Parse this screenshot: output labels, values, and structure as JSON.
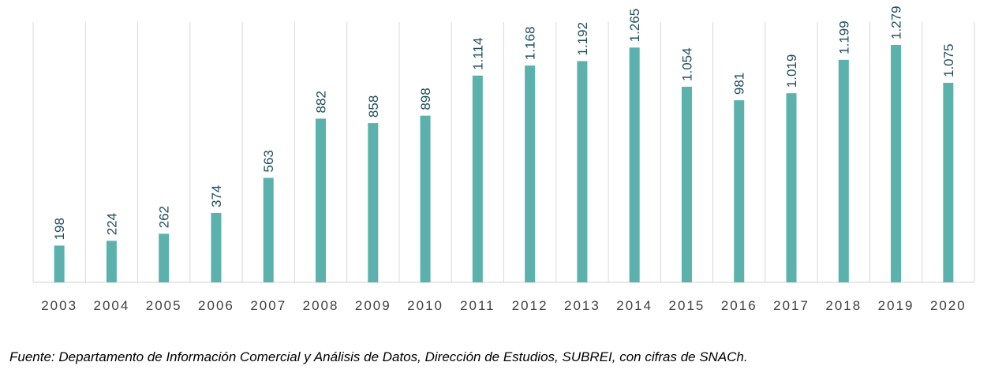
{
  "chart_data": {
    "type": "bar",
    "title": "",
    "xlabel": "",
    "ylabel": "",
    "categories": [
      "2003",
      "2004",
      "2005",
      "2006",
      "2007",
      "2008",
      "2009",
      "2010",
      "2011",
      "2012",
      "2013",
      "2014",
      "2015",
      "2016",
      "2017",
      "2018",
      "2019",
      "2020"
    ],
    "values": [
      198,
      224,
      262,
      374,
      563,
      882,
      858,
      898,
      1114,
      1168,
      1192,
      1265,
      1054,
      981,
      1019,
      1199,
      1279,
      1075
    ],
    "value_labels": [
      "198",
      "224",
      "262",
      "374",
      "563",
      "882",
      "858",
      "898",
      "1.114",
      "1.168",
      "1.192",
      "1.265",
      "1.054",
      "981",
      "1.019",
      "1.199",
      "1.279",
      "1.075"
    ],
    "ylim": [
      0,
      1279
    ],
    "grid": "vertical",
    "legend": "none",
    "colors": {
      "bar": "#5bb2ad",
      "label": "#1f4e5f",
      "grid": "#d9d9d9",
      "tick": "#404040"
    }
  },
  "source": "Fuente: Departamento de Información Comercial y Análisis de Datos, Dirección de Estudios, SUBREI, con cifras de SNACh."
}
